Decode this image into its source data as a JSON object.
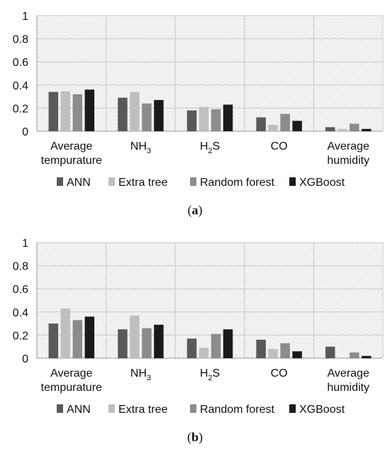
{
  "chart_data": [
    {
      "type": "bar",
      "panel_label": "a",
      "categories": [
        [
          "Average",
          "tempurature"
        ],
        [
          "NH",
          "3"
        ],
        [
          "H",
          "2",
          "S"
        ],
        [
          "CO"
        ],
        [
          "Average",
          "humidity"
        ]
      ],
      "series": [
        {
          "name": "ANN",
          "color": "#595959",
          "values": [
            0.34,
            0.29,
            0.18,
            0.12,
            0.035
          ]
        },
        {
          "name": "Extra tree",
          "color": "#bfbfbf",
          "values": [
            0.345,
            0.34,
            0.21,
            0.055,
            0.02
          ]
        },
        {
          "name": "Random forest",
          "color": "#8c8c8c",
          "values": [
            0.32,
            0.24,
            0.19,
            0.15,
            0.065
          ]
        },
        {
          "name": "XGBoost",
          "color": "#1a1a1a",
          "values": [
            0.36,
            0.27,
            0.23,
            0.09,
            0.02
          ]
        }
      ],
      "yticks": [
        "0",
        "0.2",
        "0.4",
        "0.6",
        "0.8",
        "1"
      ],
      "ylim": [
        0,
        1
      ],
      "grid": true,
      "legend": "bottom"
    },
    {
      "type": "bar",
      "panel_label": "b",
      "categories": [
        [
          "Average",
          "tempurature"
        ],
        [
          "NH",
          "3"
        ],
        [
          "H",
          "2",
          "S"
        ],
        [
          "CO"
        ],
        [
          "Average",
          "humidity"
        ]
      ],
      "series": [
        {
          "name": "ANN",
          "color": "#595959",
          "values": [
            0.3,
            0.25,
            0.17,
            0.16,
            0.1
          ]
        },
        {
          "name": "Extra tree",
          "color": "#bfbfbf",
          "values": [
            0.43,
            0.37,
            0.09,
            0.08,
            0.0
          ]
        },
        {
          "name": "Random forest",
          "color": "#8c8c8c",
          "values": [
            0.33,
            0.26,
            0.21,
            0.13,
            0.05
          ]
        },
        {
          "name": "XGBoost",
          "color": "#1a1a1a",
          "values": [
            0.36,
            0.29,
            0.25,
            0.06,
            0.02
          ]
        }
      ],
      "yticks": [
        "0",
        "0.2",
        "0.4",
        "0.6",
        "0.8",
        "1"
      ],
      "ylim": [
        0,
        1
      ],
      "grid": true,
      "legend": "bottom"
    }
  ]
}
